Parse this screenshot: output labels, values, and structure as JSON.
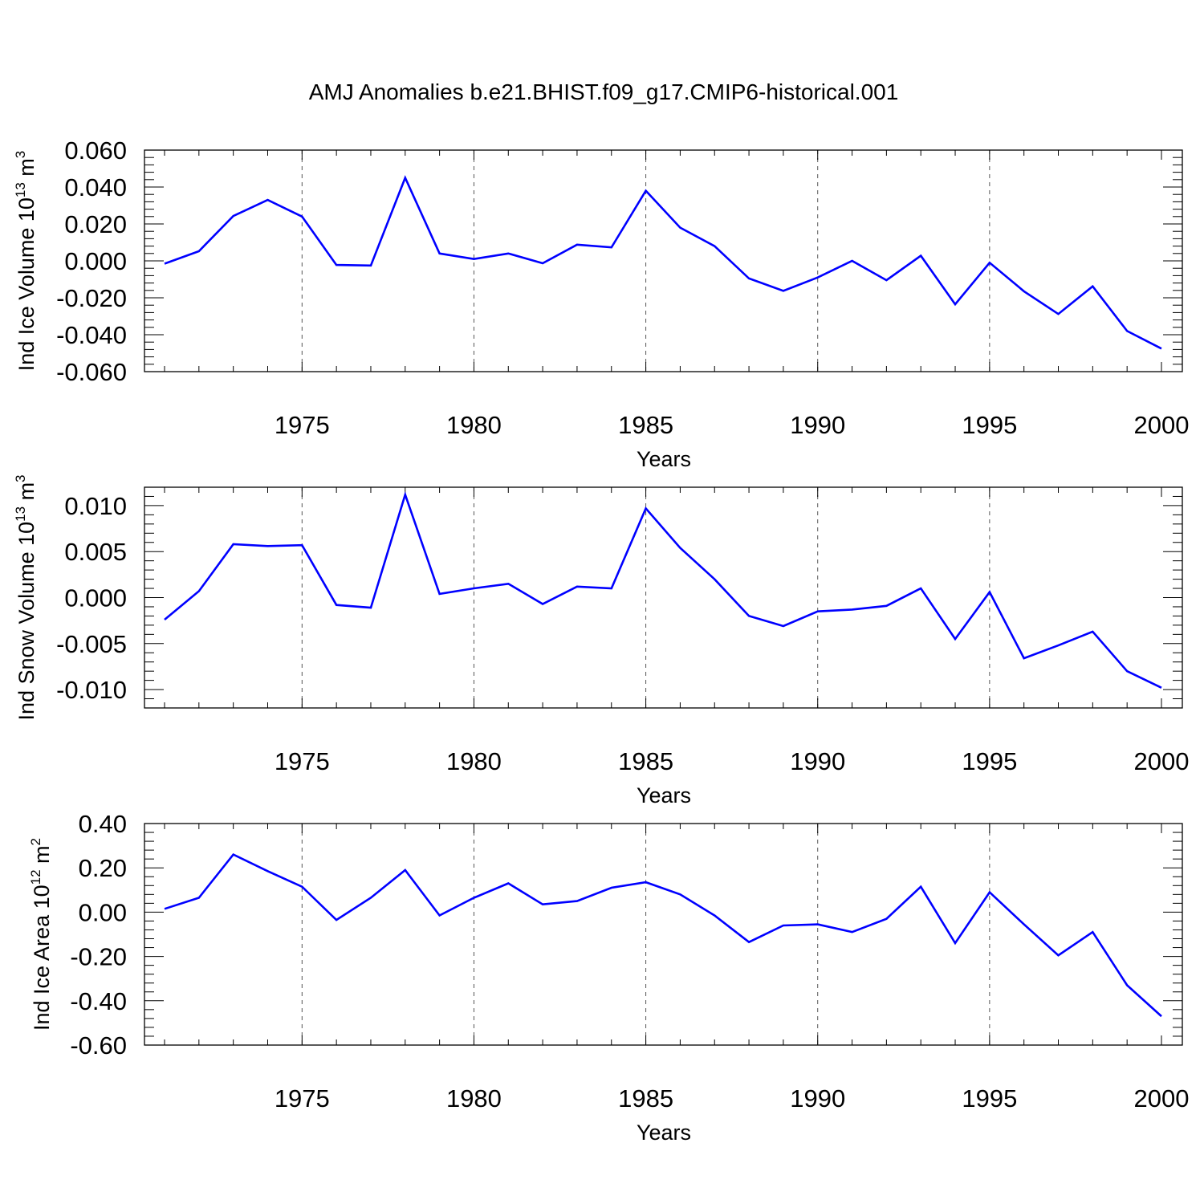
{
  "title": "AMJ Anomalies b.e21.BHIST.f09_g17.CMIP6-historical.001",
  "colors": {
    "line": "#0000ff",
    "axis": "#000000",
    "grid": "#555555"
  },
  "chart_data": [
    {
      "type": "line",
      "ylabel": "Ind Ice Volume 10",
      "ylabel_exp": "13",
      "ylabel_unit": " m",
      "ylabel_unit_exp": "3",
      "xlabel": "Years",
      "xlim": [
        1971,
        2000
      ],
      "ylim": [
        -0.06,
        0.06
      ],
      "xticks": [
        1975,
        1980,
        1985,
        1990,
        1995,
        2000
      ],
      "xtick_labels": [
        "1975",
        "1980",
        "1985",
        "1990",
        "1995",
        "2000"
      ],
      "yticks": [
        -0.06,
        -0.04,
        -0.02,
        0.0,
        0.02,
        0.04,
        0.06
      ],
      "ytick_labels": [
        "-0.060",
        "-0.040",
        "-0.020",
        "0.000",
        "0.020",
        "0.040",
        "0.060"
      ],
      "grid": "vertical dashed at major x ticks",
      "x": [
        1971,
        1972,
        1973,
        1974,
        1975,
        1976,
        1977,
        1978,
        1979,
        1980,
        1981,
        1982,
        1983,
        1984,
        1985,
        1986,
        1987,
        1988,
        1989,
        1990,
        1991,
        1992,
        1993,
        1994,
        1995,
        1996,
        1997,
        1998,
        1999,
        2000
      ],
      "values": [
        -0.0015,
        0.0052,
        0.0243,
        0.033,
        0.024,
        -0.0022,
        -0.0025,
        0.045,
        0.004,
        0.001,
        0.004,
        -0.0013,
        0.0088,
        0.0073,
        0.038,
        0.018,
        0.008,
        -0.0095,
        -0.0162,
        -0.009,
        0.0,
        -0.0105,
        0.0028,
        -0.0235,
        -0.001,
        -0.0165,
        -0.0288,
        -0.0138,
        -0.038,
        -0.0475
      ]
    },
    {
      "type": "line",
      "ylabel": "Ind Snow Volume 10",
      "ylabel_exp": "13",
      "ylabel_unit": " m",
      "ylabel_unit_exp": "3",
      "xlabel": "Years",
      "xlim": [
        1971,
        2000
      ],
      "ylim": [
        -0.012,
        0.012
      ],
      "xticks": [
        1975,
        1980,
        1985,
        1990,
        1995,
        2000
      ],
      "xtick_labels": [
        "1975",
        "1980",
        "1985",
        "1990",
        "1995",
        "2000"
      ],
      "yticks": [
        -0.01,
        -0.005,
        0.0,
        0.005,
        0.01
      ],
      "ytick_labels": [
        "-0.010",
        "-0.005",
        "0.000",
        "0.005",
        "0.010"
      ],
      "grid": "vertical dashed at major x ticks",
      "x": [
        1971,
        1972,
        1973,
        1974,
        1975,
        1976,
        1977,
        1978,
        1979,
        1980,
        1981,
        1982,
        1983,
        1984,
        1985,
        1986,
        1987,
        1988,
        1989,
        1990,
        1991,
        1992,
        1993,
        1994,
        1995,
        1996,
        1997,
        1998,
        1999,
        2000
      ],
      "values": [
        -0.0024,
        0.0007,
        0.0058,
        0.0056,
        0.0057,
        -0.0008,
        -0.0011,
        0.0112,
        0.0004,
        0.001,
        0.0015,
        -0.0007,
        0.0012,
        0.001,
        0.0097,
        0.0054,
        0.002,
        -0.002,
        -0.0031,
        -0.0015,
        -0.0013,
        -0.0009,
        0.001,
        -0.0045,
        0.0006,
        -0.0066,
        -0.0052,
        -0.0037,
        -0.008,
        -0.0098
      ]
    },
    {
      "type": "line",
      "ylabel": "Ind Ice Area 10",
      "ylabel_exp": "12",
      "ylabel_unit": " m",
      "ylabel_unit_exp": "2",
      "xlabel": "Years",
      "xlim": [
        1971,
        2000
      ],
      "ylim": [
        -0.6,
        0.4
      ],
      "xticks": [
        1975,
        1980,
        1985,
        1990,
        1995,
        2000
      ],
      "xtick_labels": [
        "1975",
        "1980",
        "1985",
        "1990",
        "1995",
        "2000"
      ],
      "yticks": [
        -0.6,
        -0.4,
        -0.2,
        0.0,
        0.2,
        0.4
      ],
      "ytick_labels": [
        "-0.60",
        "-0.40",
        "-0.20",
        "0.00",
        "0.20",
        "0.40"
      ],
      "grid": "vertical dashed at major x ticks",
      "x": [
        1971,
        1972,
        1973,
        1974,
        1975,
        1976,
        1977,
        1978,
        1979,
        1980,
        1981,
        1982,
        1983,
        1984,
        1985,
        1986,
        1987,
        1988,
        1989,
        1990,
        1991,
        1992,
        1993,
        1994,
        1995,
        1996,
        1997,
        1998,
        1999,
        2000
      ],
      "values": [
        0.015,
        0.065,
        0.26,
        0.185,
        0.115,
        -0.035,
        0.065,
        0.19,
        -0.015,
        0.065,
        0.13,
        0.035,
        0.05,
        0.11,
        0.135,
        0.08,
        -0.015,
        -0.135,
        -0.06,
        -0.055,
        -0.09,
        -0.03,
        0.115,
        -0.14,
        0.09,
        -0.055,
        -0.195,
        -0.09,
        -0.33,
        -0.47
      ]
    }
  ]
}
